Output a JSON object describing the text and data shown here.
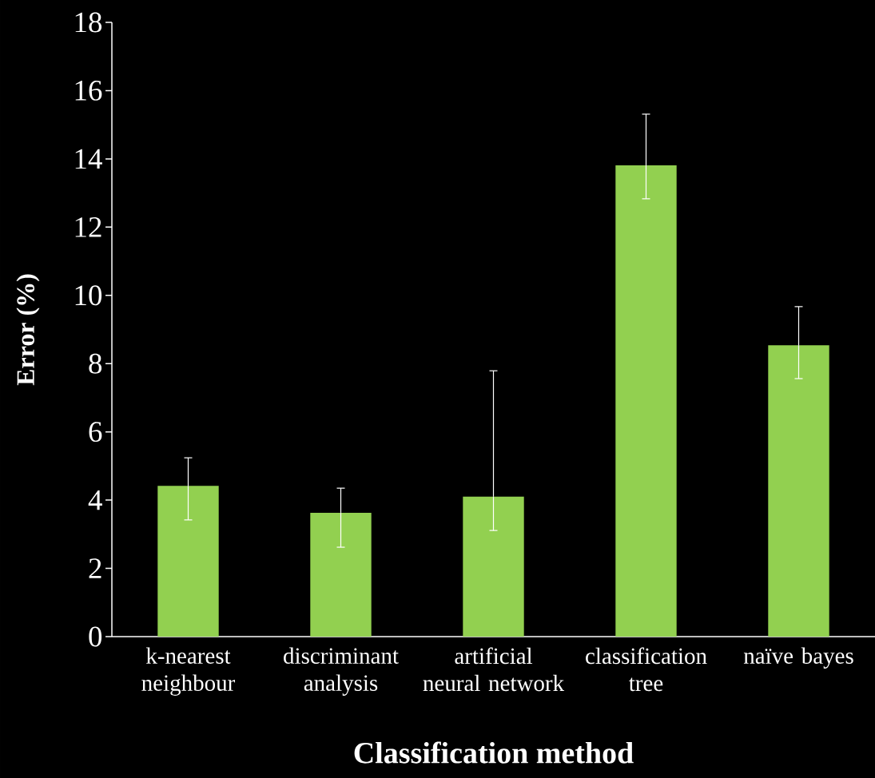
{
  "chart_data": {
    "type": "bar",
    "xlabel": "Classification method",
    "ylabel": "Error (%)",
    "categories": [
      "k-nearest neighbour",
      "discriminant analysis",
      "artificial neural network",
      "classification tree",
      "naïve bayes"
    ],
    "values": [
      4.42,
      3.63,
      4.1,
      13.81,
      8.54
    ],
    "errors": [
      [
        3.42,
        5.24
      ],
      [
        2.62,
        4.35
      ],
      [
        3.11,
        7.79
      ],
      [
        12.83,
        15.31
      ],
      [
        7.56,
        9.67
      ]
    ],
    "color": "#92d050",
    "ylim": [
      0,
      18
    ],
    "yticks": [
      0,
      2,
      4,
      6,
      8,
      10,
      12,
      14,
      16,
      18
    ],
    "grid": false
  }
}
